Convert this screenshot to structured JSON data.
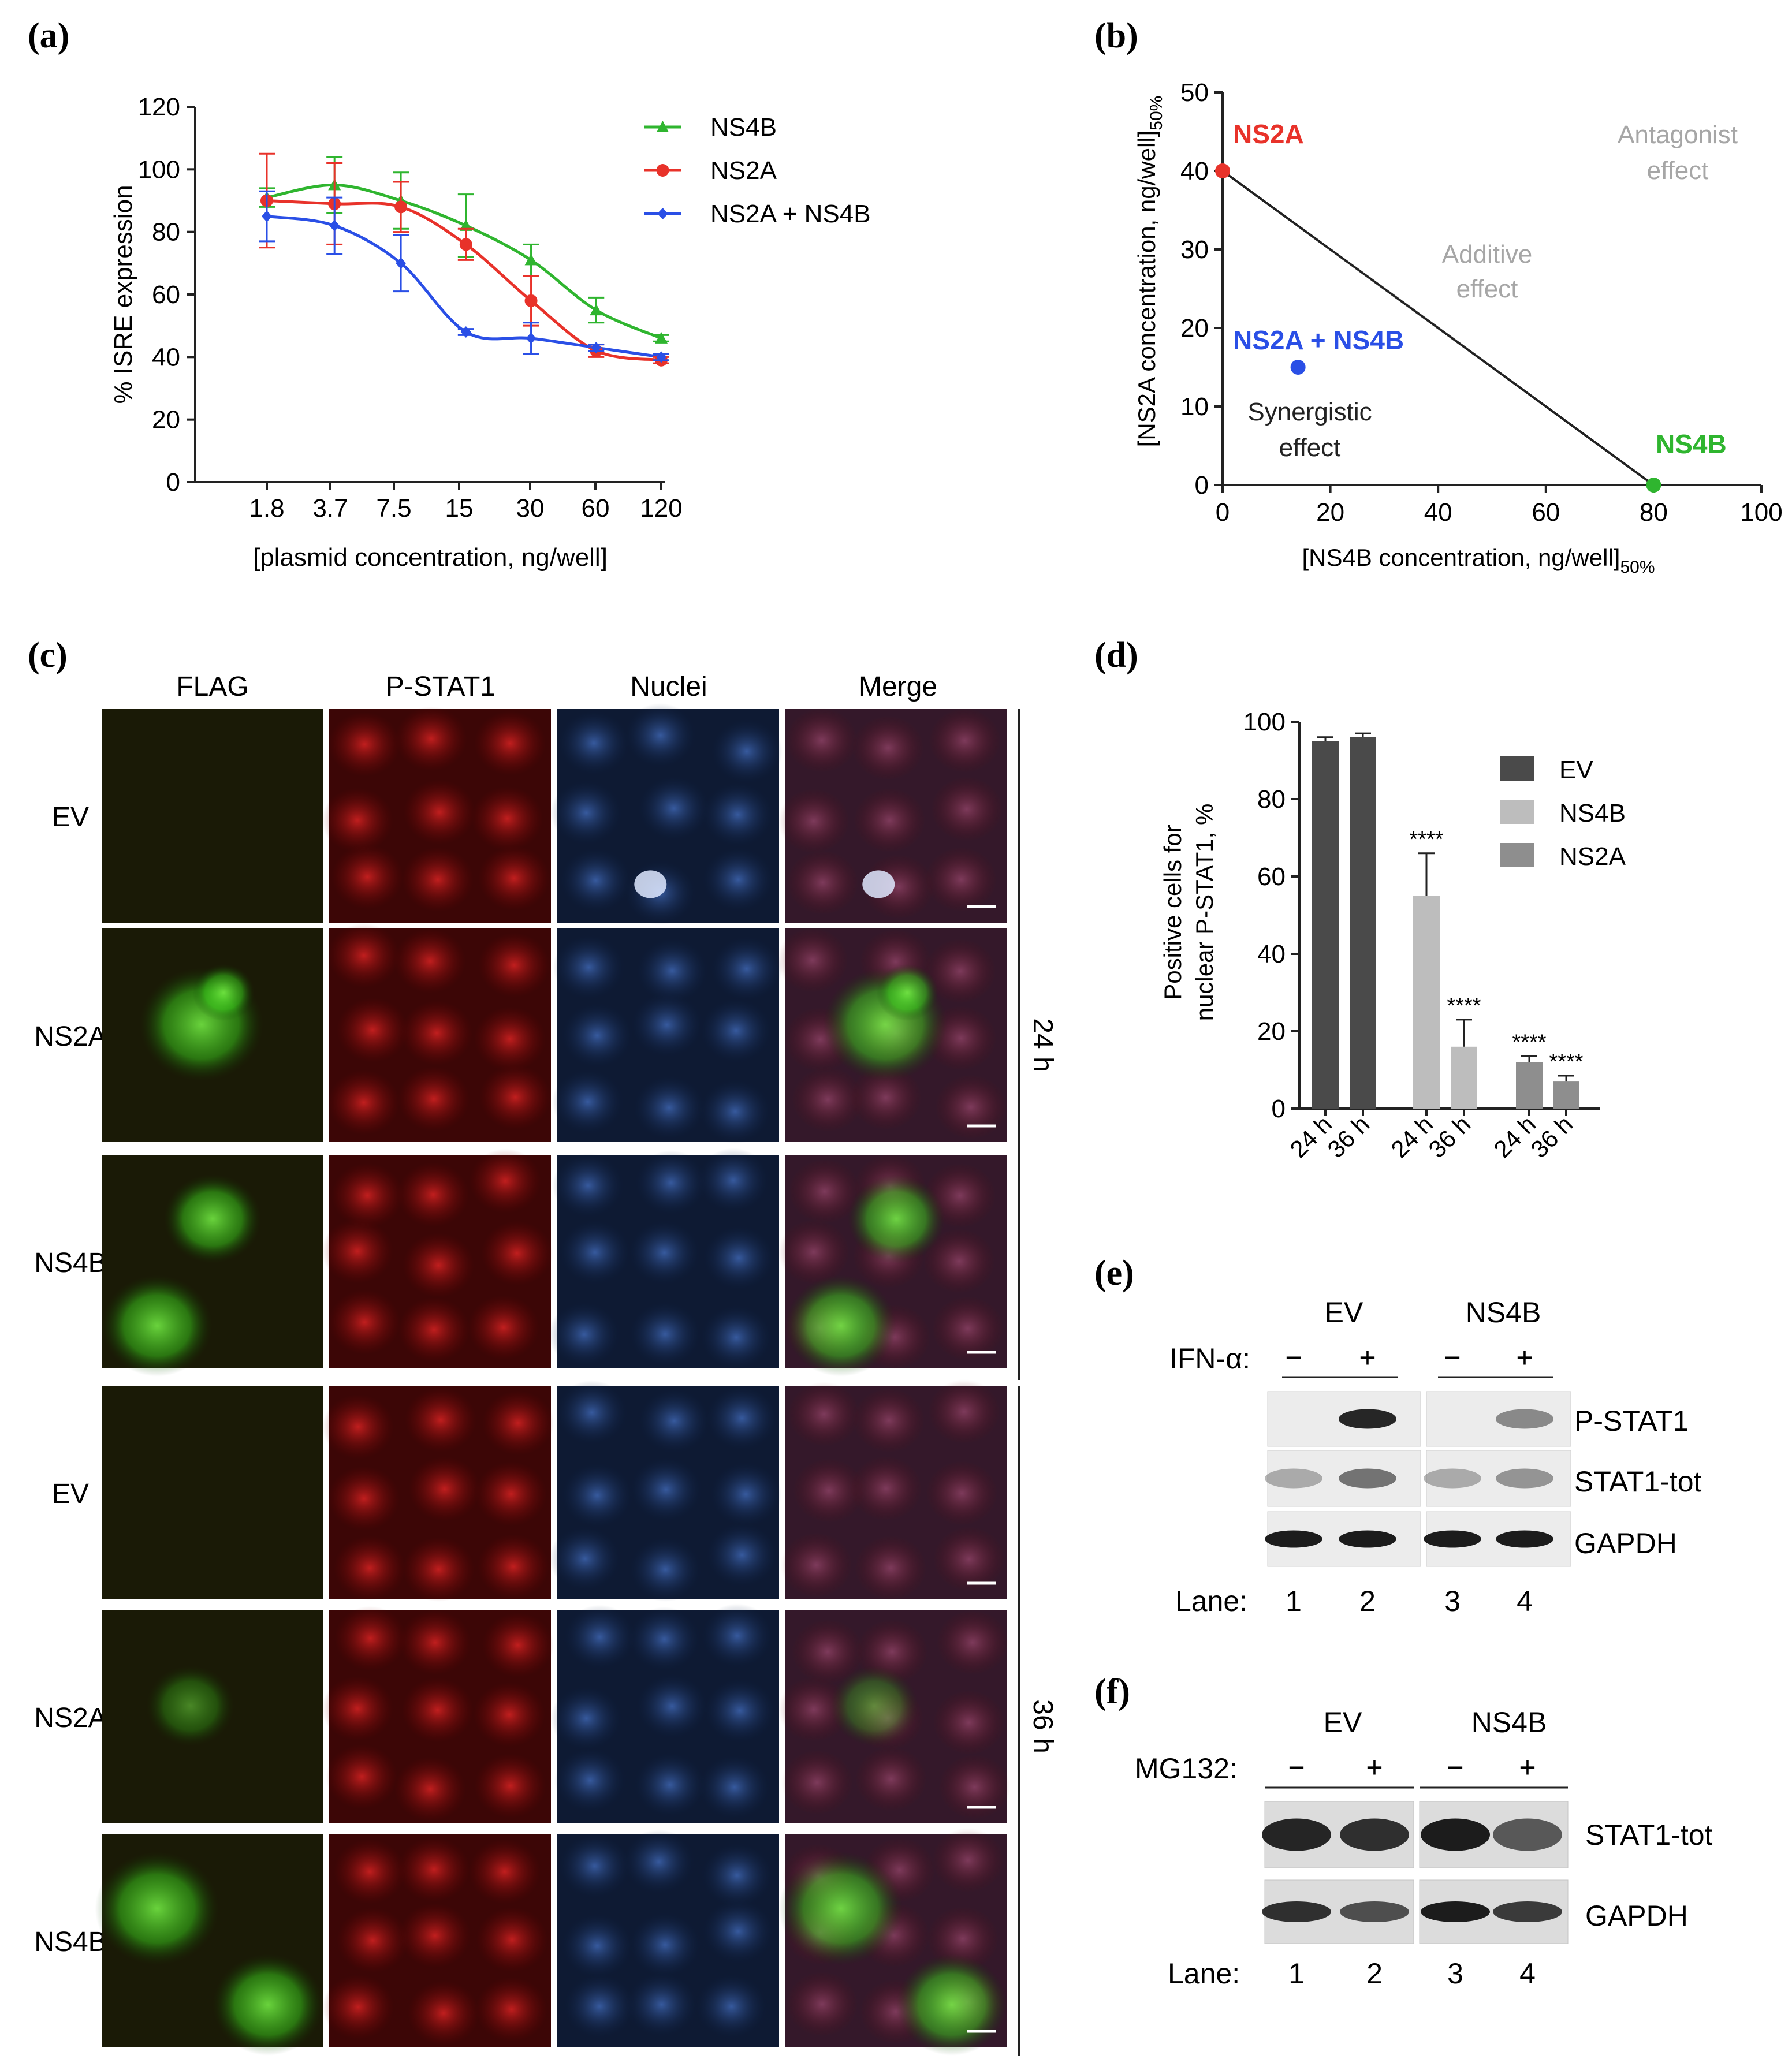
{
  "panel_labels": {
    "a": "(a)",
    "b": "(b)",
    "c": "(c)",
    "d": "(d)",
    "e": "(e)",
    "f": "(f)"
  },
  "colors": {
    "ns4b": "#2fb52f",
    "ns2a": "#e8322a",
    "combo": "#2a4fe6",
    "ev_bar": "#4a4a4a",
    "ns4b_bar": "#bdbdbd",
    "ns2a_bar": "#8e8e8e",
    "additive_text": "#a6a6a6"
  },
  "panel_a": {
    "ylabel": "% ISRE expression",
    "xlabel": "[plasmid concentration, ng/well]",
    "yticks": [
      "0",
      "20",
      "40",
      "60",
      "80",
      "100",
      "120"
    ],
    "xticks": [
      "1.8",
      "3.7",
      "7.5",
      "15",
      "30",
      "60",
      "120"
    ],
    "legend": [
      "NS4B",
      "NS2A",
      "NS2A + NS4B"
    ]
  },
  "panel_b": {
    "ylabel_main": "[NS2A concentration, ng/well]",
    "ylabel_sub": "50%",
    "xlabel_main": "[NS4B concentration, ng/well]",
    "xlabel_sub": "50%",
    "yticks": [
      "0",
      "10",
      "20",
      "30",
      "40",
      "50"
    ],
    "xticks": [
      "0",
      "20",
      "40",
      "60",
      "80",
      "100"
    ],
    "label_ns2a": "NS2A",
    "label_ns4b": "NS4B",
    "label_combo": "NS2A + NS4B",
    "antagonist_1": "Antagonist",
    "antagonist_2": "effect",
    "additive_1": "Additive",
    "additive_2": "effect",
    "synergistic_1": "Synergistic",
    "synergistic_2": "effect"
  },
  "panel_c": {
    "columns": [
      "FLAG",
      "P-STAT1",
      "Nuclei",
      "Merge"
    ],
    "rows": [
      "EV",
      "NS2A",
      "NS4B",
      "EV",
      "NS2A",
      "NS4B"
    ],
    "time_24": "24 h",
    "time_36": "36 h"
  },
  "panel_d": {
    "ylabel_1": "Positive cells for",
    "ylabel_2": "nuclear P-STAT1, %",
    "yticks": [
      "0",
      "20",
      "40",
      "60",
      "80",
      "100"
    ],
    "legend": [
      "EV",
      "NS4B",
      "NS2A"
    ],
    "xticks": [
      "24 h",
      "36 h",
      "24 h",
      "36 h",
      "24 h",
      "36 h"
    ],
    "sig": "****"
  },
  "panel_e": {
    "group_ev": "EV",
    "group_ns4b": "NS4B",
    "treatment": "IFN-α:",
    "signs": [
      "−",
      "+",
      "−",
      "+"
    ],
    "bands": [
      "P-STAT1",
      "STAT1-tot",
      "GAPDH"
    ],
    "lane_label": "Lane:",
    "lanes": [
      "1",
      "2",
      "3",
      "4"
    ]
  },
  "panel_f": {
    "group_ev": "EV",
    "group_ns4b": "NS4B",
    "treatment": "MG132:",
    "signs": [
      "−",
      "+",
      "−",
      "+"
    ],
    "bands": [
      "STAT1-tot",
      "GAPDH"
    ],
    "lane_label": "Lane:",
    "lanes": [
      "1",
      "2",
      "3",
      "4"
    ]
  },
  "chart_data": [
    {
      "panel": "a",
      "type": "line",
      "xlabel": "[plasmid concentration, ng/well]",
      "ylabel": "% ISRE expression",
      "x": [
        1.8,
        3.7,
        7.5,
        15,
        30,
        60,
        120
      ],
      "xscale": "log",
      "ylim": [
        0,
        120
      ],
      "legend_position": "top-right",
      "series": [
        {
          "name": "NS4B",
          "values": [
            91,
            95,
            90,
            82,
            71,
            55,
            46
          ],
          "errors": [
            3,
            9,
            9,
            10,
            5,
            4,
            1
          ]
        },
        {
          "name": "NS2A",
          "values": [
            90,
            89,
            88,
            76,
            58,
            42,
            39
          ],
          "errors": [
            15,
            13,
            8,
            5,
            8,
            2,
            1
          ]
        },
        {
          "name": "NS2A + NS4B",
          "values": [
            85,
            82,
            70,
            48,
            46,
            43,
            40
          ],
          "errors": [
            8,
            9,
            9,
            1,
            5,
            1,
            1
          ]
        }
      ]
    },
    {
      "panel": "b",
      "type": "scatter",
      "xlabel": "[NS4B concentration, ng/well]50%",
      "ylabel": "[NS2A concentration, ng/well]50%",
      "xlim": [
        0,
        100
      ],
      "ylim": [
        0,
        50
      ],
      "points": [
        {
          "name": "NS2A",
          "x": 0,
          "y": 40
        },
        {
          "name": "NS4B",
          "x": 80,
          "y": 0
        },
        {
          "name": "NS2A + NS4B",
          "x": 14,
          "y": 15
        }
      ],
      "line": {
        "x": [
          0,
          80
        ],
        "y": [
          40,
          0
        ]
      }
    },
    {
      "panel": "d",
      "type": "bar",
      "ylabel": "Positive cells for nuclear P-STAT1, %",
      "ylim": [
        0,
        100
      ],
      "categories": [
        "24 h",
        "36 h",
        "24 h",
        "36 h",
        "24 h",
        "36 h"
      ],
      "series": [
        {
          "name": "EV",
          "values": [
            95,
            96,
            null,
            null,
            null,
            null
          ],
          "errors": [
            1,
            1,
            null,
            null,
            null,
            null
          ]
        },
        {
          "name": "NS4B",
          "values": [
            null,
            null,
            55,
            16,
            null,
            null
          ],
          "errors": [
            null,
            null,
            11,
            7,
            null,
            null
          ]
        },
        {
          "name": "NS2A",
          "values": [
            null,
            null,
            null,
            null,
            12,
            7
          ],
          "errors": [
            null,
            null,
            null,
            null,
            1.5,
            1.5
          ]
        }
      ],
      "annotations": [
        "****",
        "****",
        "****",
        "****"
      ],
      "legend_position": "top-right"
    }
  ]
}
